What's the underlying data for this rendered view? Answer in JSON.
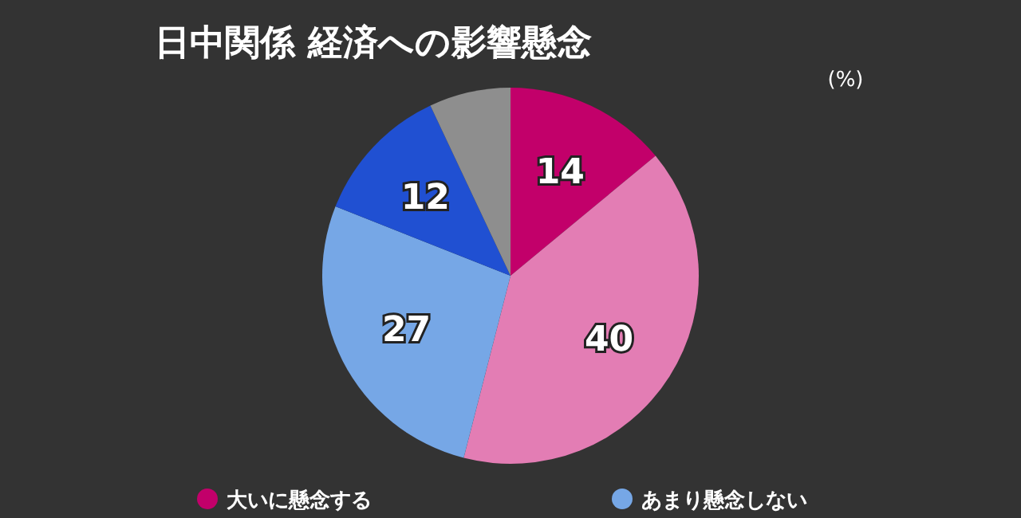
{
  "chart_data": {
    "type": "pie",
    "title": "日中関係 経済への影響懸念",
    "annotations": [
      "(%)"
    ],
    "categories": [
      "大いに懸念する",
      null,
      "あまり懸念しない",
      null,
      null
    ],
    "values": [
      14,
      40,
      27,
      12,
      7
    ],
    "colors": [
      "#c2006a",
      "#e37db4",
      "#76a7e6",
      "#2050d2",
      "#8e8e8e"
    ],
    "value_labels": [
      "14",
      "40",
      "27",
      "12",
      null
    ],
    "legend": "bottom"
  }
}
